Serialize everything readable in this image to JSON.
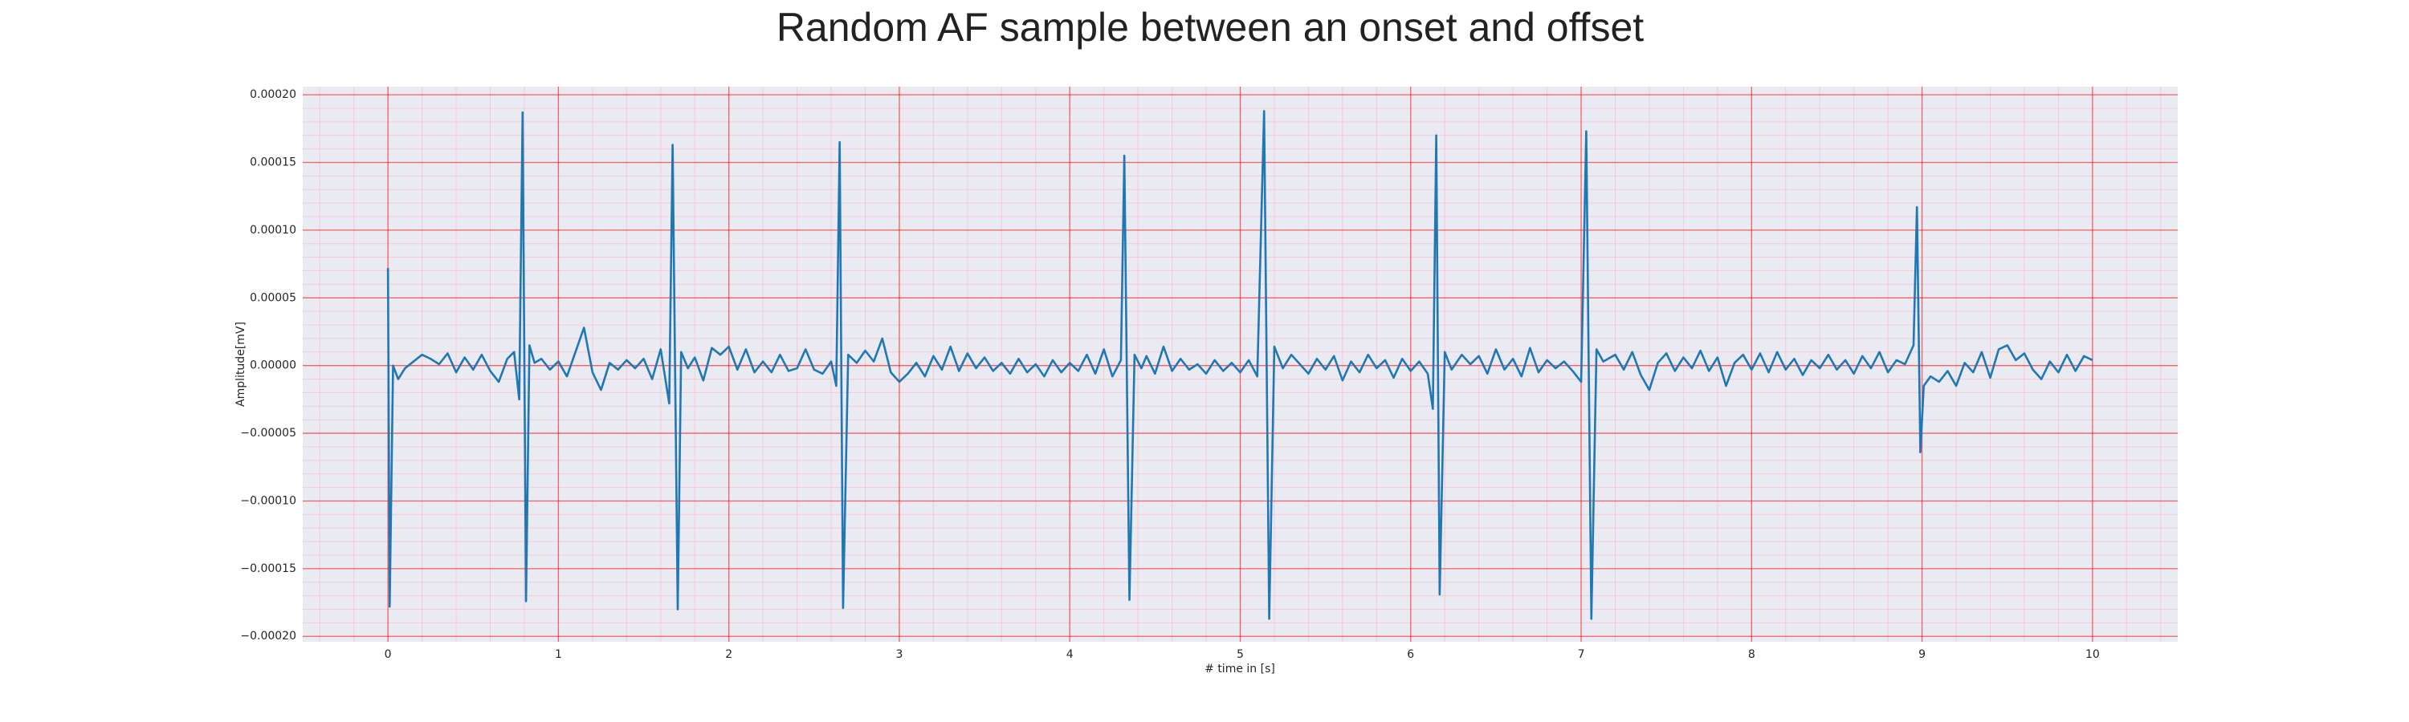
{
  "chart_data": {
    "type": "line",
    "title": "Random AF sample between an onset and offset",
    "xlabel": "# time in [s]",
    "ylabel": "Amplitude[mV]",
    "color": "#1f77b4",
    "grid": true,
    "minor_grid": true,
    "xlim": [
      -0.5,
      10.5
    ],
    "ylim": [
      -0.000204,
      0.000206
    ],
    "xticks": [
      0,
      1,
      2,
      3,
      4,
      5,
      6,
      7,
      8,
      9,
      10
    ],
    "yticks": [
      {
        "value": -0.0002,
        "label": "−0.00020"
      },
      {
        "value": -0.00015,
        "label": "−0.00015"
      },
      {
        "value": -0.0001,
        "label": "−0.00010"
      },
      {
        "value": -5e-05,
        "label": "−0.00005"
      },
      {
        "value": 0,
        "label": "0.00000"
      },
      {
        "value": 5e-05,
        "label": "0.00005"
      },
      {
        "value": 0.0001,
        "label": "0.00010"
      },
      {
        "value": 0.00015,
        "label": "0.00015"
      },
      {
        "value": 0.0002,
        "label": "0.00020"
      }
    ],
    "x": [
      0,
      0.01,
      0.03,
      0.06,
      0.1,
      0.15,
      0.2,
      0.25,
      0.3,
      0.35,
      0.4,
      0.45,
      0.5,
      0.55,
      0.6,
      0.65,
      0.7,
      0.74,
      0.77,
      0.79,
      0.81,
      0.83,
      0.86,
      0.9,
      0.95,
      1.0,
      1.05,
      1.1,
      1.15,
      1.2,
      1.25,
      1.3,
      1.35,
      1.4,
      1.45,
      1.5,
      1.55,
      1.6,
      1.65,
      1.67,
      1.7,
      1.72,
      1.76,
      1.8,
      1.85,
      1.9,
      1.95,
      2.0,
      2.05,
      2.1,
      2.15,
      2.2,
      2.25,
      2.3,
      2.35,
      2.4,
      2.45,
      2.5,
      2.55,
      2.6,
      2.63,
      2.65,
      2.67,
      2.7,
      2.75,
      2.8,
      2.85,
      2.9,
      2.95,
      3.0,
      3.05,
      3.1,
      3.15,
      3.2,
      3.25,
      3.3,
      3.35,
      3.4,
      3.45,
      3.5,
      3.55,
      3.6,
      3.65,
      3.7,
      3.75,
      3.8,
      3.85,
      3.9,
      3.95,
      4.0,
      4.05,
      4.1,
      4.15,
      4.2,
      4.25,
      4.3,
      4.32,
      4.35,
      4.38,
      4.42,
      4.45,
      4.5,
      4.55,
      4.6,
      4.65,
      4.7,
      4.75,
      4.8,
      4.85,
      4.9,
      4.95,
      5.0,
      5.05,
      5.1,
      5.14,
      5.17,
      5.2,
      5.25,
      5.3,
      5.35,
      5.4,
      5.45,
      5.5,
      5.55,
      5.6,
      5.65,
      5.7,
      5.75,
      5.8,
      5.85,
      5.9,
      5.95,
      6.0,
      6.05,
      6.1,
      6.13,
      6.15,
      6.17,
      6.2,
      6.24,
      6.3,
      6.35,
      6.4,
      6.45,
      6.5,
      6.55,
      6.6,
      6.65,
      6.7,
      6.75,
      6.8,
      6.85,
      6.9,
      6.95,
      7.0,
      7.03,
      7.06,
      7.09,
      7.13,
      7.2,
      7.25,
      7.3,
      7.35,
      7.4,
      7.45,
      7.5,
      7.55,
      7.6,
      7.65,
      7.7,
      7.75,
      7.8,
      7.85,
      7.9,
      7.95,
      8.0,
      8.05,
      8.1,
      8.15,
      8.2,
      8.25,
      8.3,
      8.35,
      8.4,
      8.45,
      8.5,
      8.55,
      8.6,
      8.65,
      8.7,
      8.75,
      8.8,
      8.85,
      8.9,
      8.95,
      8.97,
      8.99,
      9.01,
      9.05,
      9.1,
      9.15,
      9.2,
      9.25,
      9.3,
      9.35,
      9.4,
      9.45,
      9.5,
      9.55,
      9.6,
      9.65,
      9.7,
      9.75,
      9.8,
      9.85,
      9.9,
      9.95,
      10.0
    ],
    "values": [
      7.2e-05,
      -0.000178,
      0,
      -1e-05,
      -2e-06,
      3e-06,
      8e-06,
      5e-06,
      1e-06,
      9e-06,
      -5e-06,
      6e-06,
      -3e-06,
      8e-06,
      -4e-06,
      -1.2e-05,
      5e-06,
      1e-05,
      -2.5e-05,
      0.000187,
      -0.000174,
      1.5e-05,
      2e-06,
      5e-06,
      -3e-06,
      3e-06,
      -8e-06,
      1e-05,
      2.8e-05,
      -5e-06,
      -1.8e-05,
      2e-06,
      -3e-06,
      4e-06,
      -2e-06,
      5e-06,
      -1e-05,
      1.2e-05,
      -2.8e-05,
      0.000163,
      -0.00018,
      1e-05,
      -2e-06,
      6e-06,
      -1.1e-05,
      1.3e-05,
      8e-06,
      1.4e-05,
      -3e-06,
      1.2e-05,
      -5e-06,
      3e-06,
      -5e-06,
      8e-06,
      -4e-06,
      -2e-06,
      1.2e-05,
      -3e-06,
      -6e-06,
      3e-06,
      -1.5e-05,
      0.000165,
      -0.000179,
      8e-06,
      2e-06,
      1.1e-05,
      3e-06,
      2e-05,
      -5e-06,
      -1.2e-05,
      -6e-06,
      2e-06,
      -8e-06,
      7e-06,
      -3e-06,
      1.4e-05,
      -4e-06,
      9e-06,
      -2e-06,
      6e-06,
      -4e-06,
      2e-06,
      -6e-06,
      5e-06,
      -5e-06,
      1e-06,
      -8e-06,
      4e-06,
      -5e-06,
      2e-06,
      -4e-06,
      8e-06,
      -6e-06,
      1.2e-05,
      -8e-06,
      4e-06,
      0.000155,
      -0.000173,
      8e-06,
      -2e-06,
      7e-06,
      -6e-06,
      1.4e-05,
      -4e-06,
      5e-06,
      -3e-06,
      1e-06,
      -6e-06,
      4e-06,
      -4e-06,
      2e-06,
      -5e-06,
      4e-06,
      -8e-06,
      0.000188,
      -0.000187,
      1.4e-05,
      -2e-06,
      8e-06,
      1e-06,
      -6e-06,
      5e-06,
      -3e-06,
      7e-06,
      -1.1e-05,
      3e-06,
      -5e-06,
      8e-06,
      -2e-06,
      4e-06,
      -9e-06,
      5e-06,
      -4e-06,
      3e-06,
      -6e-06,
      -3.2e-05,
      0.00017,
      -0.000169,
      1e-05,
      -3e-06,
      8e-06,
      1e-06,
      7e-06,
      -6e-06,
      1.2e-05,
      -3e-06,
      5e-06,
      -8e-06,
      1.3e-05,
      -5e-06,
      4e-06,
      -2e-06,
      3e-06,
      -4e-06,
      -1.2e-05,
      0.000173,
      -0.000187,
      1.2e-05,
      3e-06,
      8e-06,
      -3e-06,
      1e-05,
      -7e-06,
      -1.8e-05,
      2e-06,
      9e-06,
      -4e-06,
      6e-06,
      -2e-06,
      1.1e-05,
      -4e-06,
      6e-06,
      -1.5e-05,
      2e-06,
      8e-06,
      -3e-06,
      9e-06,
      -5e-06,
      1e-05,
      -3e-06,
      5e-06,
      -7e-06,
      4e-06,
      -2e-06,
      8e-06,
      -3e-06,
      4e-06,
      -6e-06,
      7e-06,
      -2e-06,
      1e-05,
      -5e-06,
      4e-06,
      1e-06,
      1.5e-05,
      0.000117,
      -6.4e-05,
      -1.5e-05,
      -8e-06,
      -1.2e-05,
      -4e-06,
      -1.5e-05,
      2e-06,
      -5e-06,
      1e-05,
      -9e-06,
      1.2e-05,
      1.5e-05,
      4e-06,
      9e-06,
      -3e-06,
      -1e-05,
      3e-06,
      -5e-06,
      8e-06,
      -4e-06,
      7e-06,
      4e-06
    ]
  }
}
